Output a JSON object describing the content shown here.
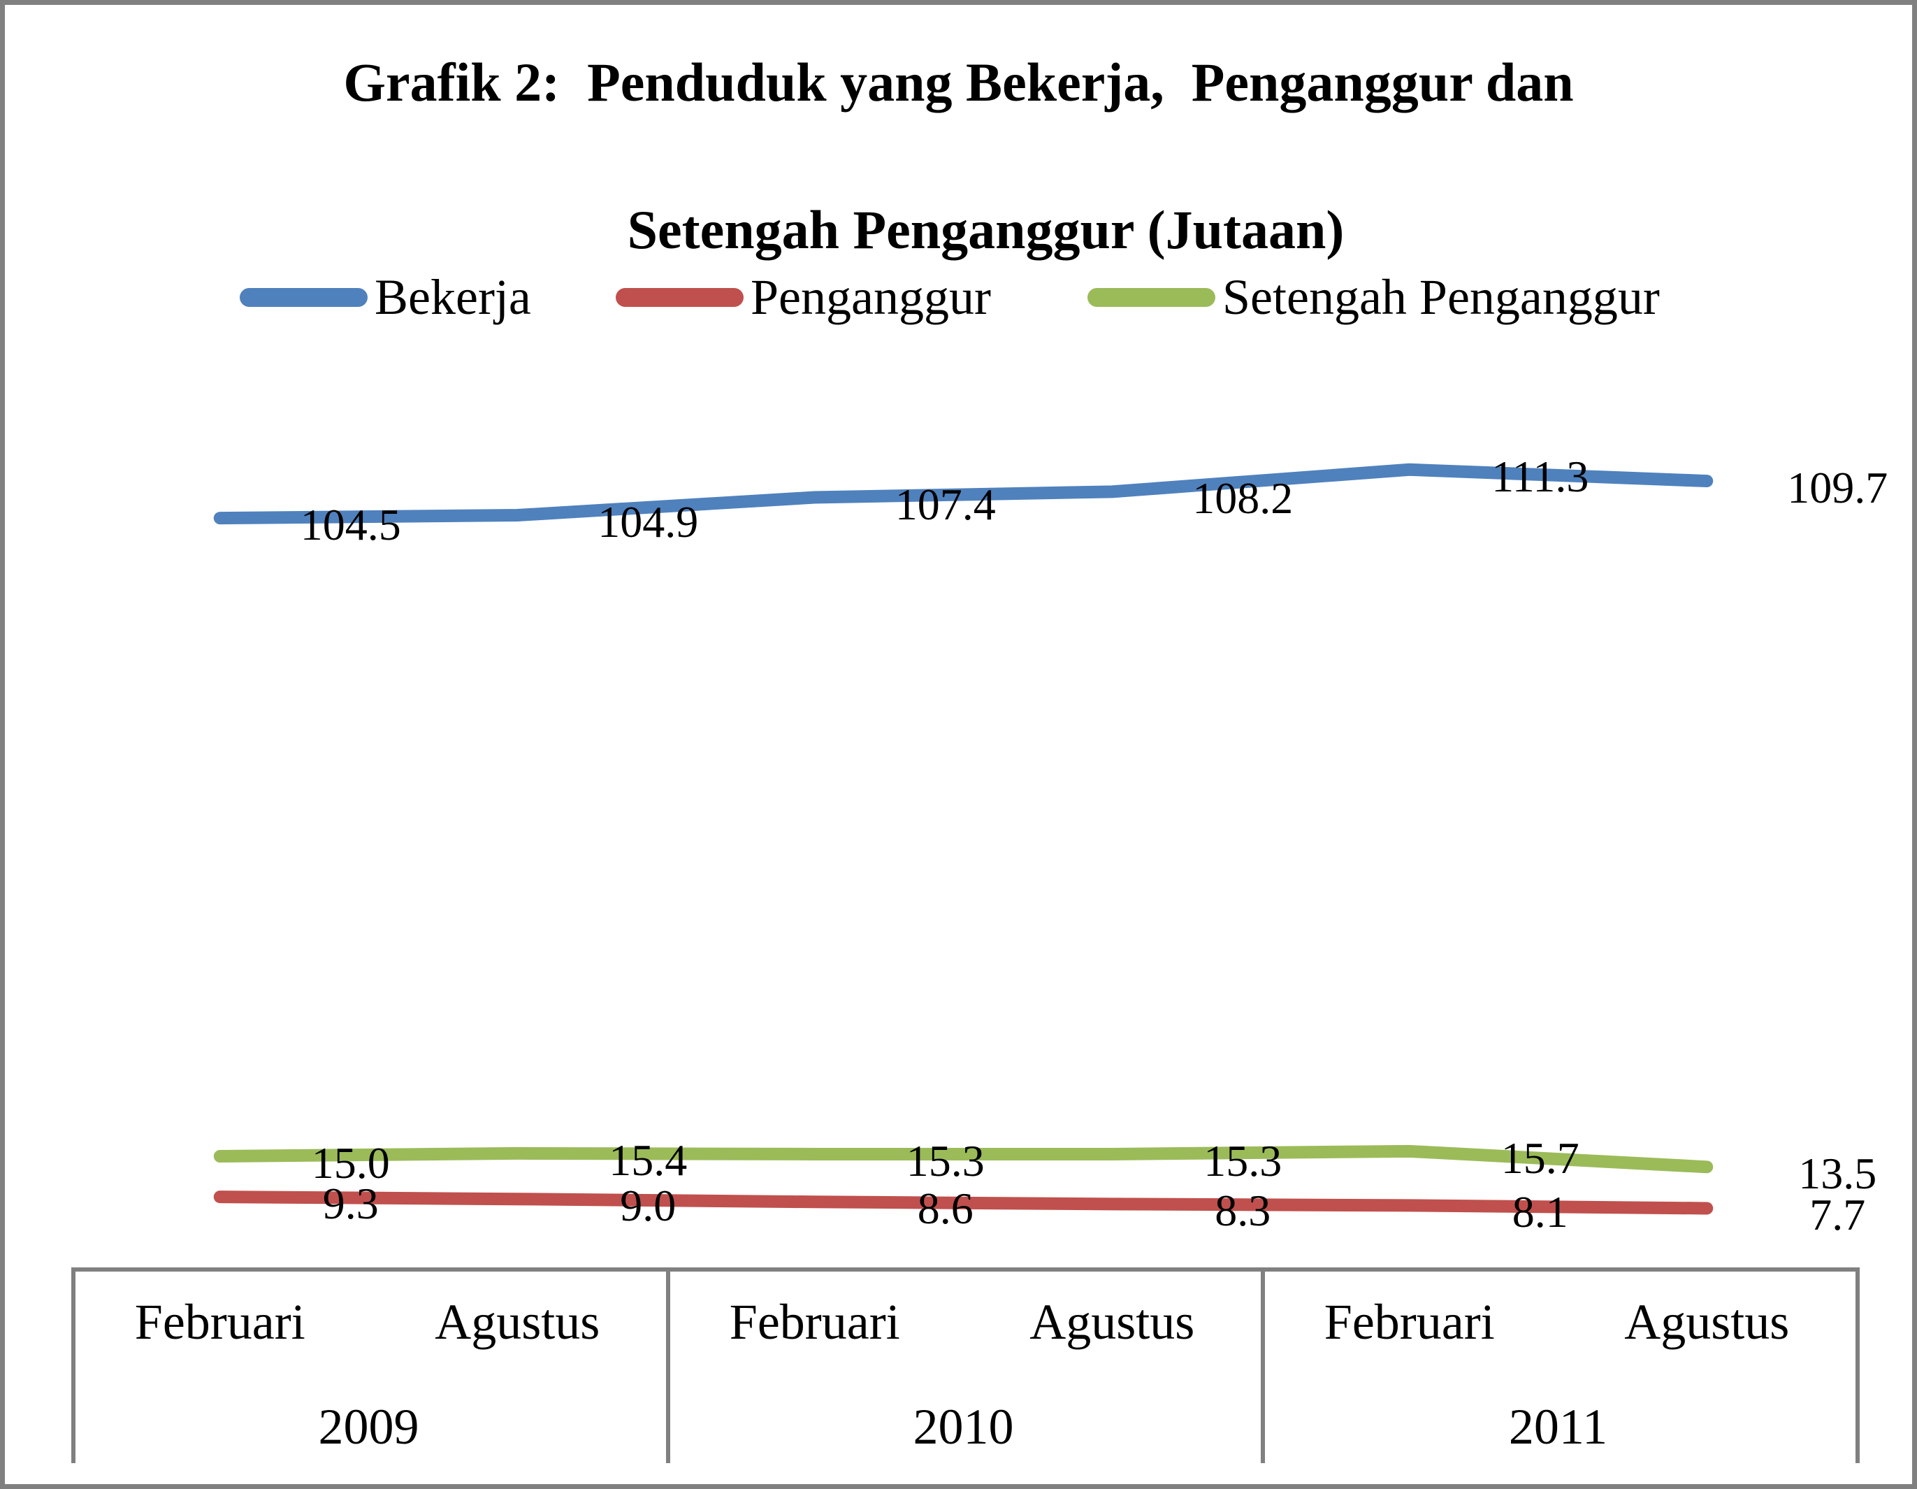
{
  "title": {
    "line1": "Grafik 2:  Penduduk yang Bekerja,  Penganggur dan",
    "line2": "Setengah Penganggur (Jutaan)"
  },
  "legend": {
    "position": "top",
    "items": [
      {
        "label": "Bekerja",
        "color": "#4F81BD"
      },
      {
        "label": "Penganggur",
        "color": "#C0504D"
      },
      {
        "label": "Setengah Penganggur",
        "color": "#9BBB59"
      }
    ]
  },
  "chart_data": {
    "type": "line",
    "title": "Grafik 2: Penduduk yang Bekerja, Penganggur dan Setengah Penganggur (Jutaan)",
    "categories": [
      "Februari 2009",
      "Agustus 2009",
      "Februari 2010",
      "Agustus 2010",
      "Februari 2011",
      "Agustus 2011"
    ],
    "series": [
      {
        "name": "Bekerja",
        "color": "#4F81BD",
        "values": [
          104.5,
          104.9,
          107.4,
          108.2,
          111.3,
          109.7
        ],
        "labels": [
          "104.5",
          "104.9",
          "107.4",
          "108.2",
          "111.3",
          "109.7"
        ]
      },
      {
        "name": "Penganggur",
        "color": "#C0504D",
        "values": [
          9.3,
          9.0,
          8.6,
          8.3,
          8.1,
          7.7
        ],
        "labels": [
          "9.3",
          "9.0",
          "8.6",
          "8.3",
          "8.1",
          "7.7"
        ]
      },
      {
        "name": "Setengah Penganggur",
        "color": "#9BBB59",
        "values": [
          15.0,
          15.4,
          15.3,
          15.3,
          15.7,
          13.5
        ],
        "labels": [
          "15.0",
          "15.4",
          "15.3",
          "15.3",
          "15.7",
          "13.5"
        ]
      }
    ],
    "xlabel": "",
    "ylabel": "",
    "ylim": [
      0,
      125
    ],
    "grid": false,
    "data_labels_shown": true,
    "legend_position": "top"
  },
  "x_axis": {
    "groups": [
      {
        "year": "2009",
        "months": [
          "Februari",
          "Agustus"
        ]
      },
      {
        "year": "2010",
        "months": [
          "Februari",
          "Agustus"
        ]
      },
      {
        "year": "2011",
        "months": [
          "Februari",
          "Agustus"
        ]
      }
    ],
    "line_color": "#808080"
  },
  "frame": {
    "border_color": "#808080",
    "background": "#ffffff"
  }
}
